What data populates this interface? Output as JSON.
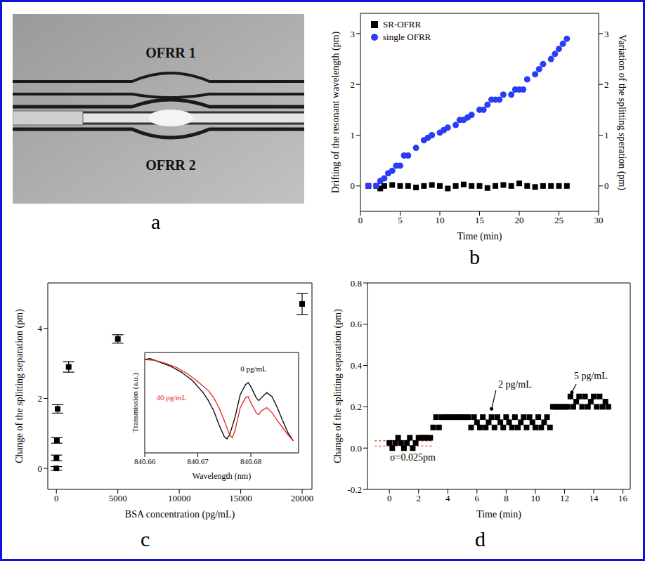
{
  "chart_data": [
    {
      "type": "image",
      "panel_label": "a",
      "labels": [
        "OFRR 1",
        "OFRR 2"
      ]
    },
    {
      "type": "scatter",
      "panel_label": "b",
      "x_label": "Time (min)",
      "y_label": "Drifting of the resonant wavelength (pm)",
      "y2_label": "Variation of the splitting speration (pm)",
      "xlim": [
        0,
        30
      ],
      "xticks": [
        0,
        5,
        10,
        15,
        20,
        25,
        30
      ],
      "ylim": [
        -0.5,
        3.4
      ],
      "yticks": [
        0,
        1,
        2,
        3
      ],
      "y2lim": [
        -0.5,
        3.4
      ],
      "y2ticks": [
        0,
        1,
        2,
        3
      ],
      "legend": "upper left",
      "series": [
        {
          "name": "SR-OFRR",
          "color": "#000000",
          "marker": "square",
          "axis": "y2",
          "x": [
            1,
            2,
            2.5,
            3,
            4,
            5,
            6,
            7,
            8,
            9,
            10,
            11,
            12,
            13,
            14,
            15,
            16,
            17,
            18,
            19,
            20,
            21,
            22,
            23,
            24,
            25,
            26
          ],
          "values": [
            0,
            0,
            -0.05,
            0,
            0.02,
            0,
            0,
            -0.03,
            0,
            0.02,
            0,
            -0.05,
            0,
            0.03,
            0,
            0,
            -0.04,
            0,
            0.02,
            0,
            0.05,
            0,
            -0.02,
            0,
            0,
            0,
            0
          ]
        },
        {
          "name": "single OFRR",
          "color": "#2b3cf5",
          "marker": "circle",
          "x": [
            1,
            2,
            2.5,
            3,
            3.5,
            4,
            4.5,
            5,
            5.5,
            6,
            7,
            8,
            8.5,
            9,
            10,
            10.5,
            11,
            12,
            12.5,
            13,
            13.5,
            14,
            15,
            15.5,
            16,
            16.5,
            17,
            17.5,
            18,
            19,
            19.5,
            20,
            20.5,
            21,
            22,
            22.5,
            23,
            24,
            24.5,
            25,
            25.5,
            26
          ],
          "values": [
            0,
            0,
            0.1,
            0.15,
            0.25,
            0.3,
            0.4,
            0.4,
            0.6,
            0.6,
            0.75,
            0.9,
            0.95,
            1.0,
            1.05,
            1.1,
            1.15,
            1.2,
            1.3,
            1.3,
            1.35,
            1.4,
            1.5,
            1.5,
            1.6,
            1.7,
            1.7,
            1.7,
            1.8,
            1.8,
            1.9,
            1.9,
            1.9,
            2.1,
            2.2,
            2.3,
            2.4,
            2.5,
            2.6,
            2.7,
            2.8,
            2.9
          ]
        }
      ]
    },
    {
      "type": "scatter",
      "panel_label": "c",
      "x_label": "BSA concentration (pg/mL)",
      "y_label": "Change of the splitting separation (pm)",
      "xlim": [
        -700,
        20800
      ],
      "xticks": [
        0,
        5000,
        10000,
        15000,
        20000
      ],
      "ylim": [
        -0.6,
        5.3
      ],
      "yticks": [
        0,
        2,
        4
      ],
      "color": "#000000",
      "marker": "square",
      "x": [
        0,
        5,
        40,
        100,
        1000,
        5000,
        20000
      ],
      "values": [
        0,
        0.3,
        0.8,
        1.7,
        2.9,
        3.7,
        4.7
      ],
      "errors": [
        0.05,
        0.08,
        0.08,
        0.12,
        0.15,
        0.12,
        0.3
      ],
      "inset": {
        "type": "line",
        "x_label": "Wavelength (nm)",
        "y_label": "Transmission (a.u.)",
        "xlim": [
          840.66,
          840.689
        ],
        "xticks": [
          840.66,
          840.67,
          840.68
        ],
        "ylim": [
          0,
          1
        ],
        "tick_labels": "x",
        "series": [
          {
            "name": "0 pg/mL",
            "color": "#000000",
            "x": [
              840.66,
              840.661,
              840.662,
              840.663,
              840.664,
              840.665,
              840.666,
              840.667,
              840.668,
              840.669,
              840.67,
              840.671,
              840.672,
              840.673,
              840.674,
              840.675,
              840.6755,
              840.676,
              840.677,
              840.678,
              840.679,
              840.6795,
              840.68,
              840.681,
              840.6815,
              840.682,
              840.683,
              840.684,
              840.685,
              840.686,
              840.687,
              840.688
            ],
            "values": [
              0.93,
              0.94,
              0.92,
              0.9,
              0.88,
              0.86,
              0.83,
              0.8,
              0.76,
              0.72,
              0.66,
              0.6,
              0.52,
              0.42,
              0.28,
              0.16,
              0.14,
              0.18,
              0.35,
              0.58,
              0.68,
              0.7,
              0.66,
              0.55,
              0.52,
              0.55,
              0.6,
              0.56,
              0.45,
              0.32,
              0.2,
              0.12
            ]
          },
          {
            "name": "40 pg/mL",
            "color": "#e8231f",
            "x": [
              840.66,
              840.662,
              840.664,
              840.666,
              840.668,
              840.67,
              840.672,
              840.673,
              840.674,
              840.675,
              840.676,
              840.6765,
              840.677,
              840.678,
              840.679,
              840.6795,
              840.68,
              840.681,
              840.6815,
              840.682,
              840.683,
              840.684,
              840.685,
              840.686,
              840.687,
              840.688
            ],
            "values": [
              0.93,
              0.92,
              0.89,
              0.85,
              0.79,
              0.71,
              0.62,
              0.55,
              0.45,
              0.32,
              0.18,
              0.15,
              0.22,
              0.45,
              0.55,
              0.56,
              0.5,
              0.4,
              0.38,
              0.42,
              0.45,
              0.4,
              0.32,
              0.25,
              0.18,
              0.12
            ]
          }
        ]
      }
    },
    {
      "type": "scatter",
      "panel_label": "d",
      "x_label": "Time (min)",
      "y_label": "Change of the splitting separation (pm)",
      "xlim": [
        -1.5,
        16.5
      ],
      "xticks": [
        0,
        2,
        4,
        6,
        8,
        10,
        12,
        14,
        16
      ],
      "ylim": [
        -0.2,
        0.8
      ],
      "yticks": [
        -0.2,
        {
          "value": 0,
          "label": "0.0"
        },
        0.2,
        0.4,
        0.6,
        0.8
      ],
      "color": "#000000",
      "marker": "square",
      "x": [
        0,
        0.2,
        0.4,
        0.6,
        0.8,
        1,
        1.2,
        1.4,
        1.6,
        1.8,
        2,
        2.2,
        2.4,
        2.6,
        2.8,
        3,
        3.2,
        3.4,
        3.6,
        3.8,
        4,
        4.2,
        4.4,
        4.6,
        4.8,
        5,
        5.2,
        5.4,
        5.6,
        5.8,
        6,
        6.2,
        6.4,
        6.6,
        6.8,
        7,
        7.2,
        7.4,
        7.6,
        7.8,
        8,
        8.2,
        8.4,
        8.6,
        8.8,
        9,
        9.2,
        9.4,
        9.6,
        9.8,
        10,
        10.2,
        10.4,
        10.6,
        10.8,
        11,
        11.2,
        11.4,
        11.6,
        11.8,
        12,
        12.2,
        12.4,
        12.6,
        12.8,
        13,
        13.2,
        13.4,
        13.6,
        13.8,
        14,
        14.2,
        14.4,
        14.6,
        14.8,
        15
      ],
      "values": [
        0.025,
        0,
        0.025,
        0.05,
        0.025,
        0,
        0.025,
        0.05,
        0,
        0.025,
        0.05,
        0.05,
        0.05,
        0.05,
        0.05,
        0.1,
        0.15,
        0.1,
        0.15,
        0.15,
        0.15,
        0.15,
        0.15,
        0.15,
        0.15,
        0.15,
        0.15,
        0.15,
        0.1,
        0.15,
        0.125,
        0.1,
        0.15,
        0.1,
        0.125,
        0.15,
        0.1,
        0.15,
        0.125,
        0.1,
        0.15,
        0.125,
        0.1,
        0.15,
        0.1,
        0.125,
        0.15,
        0.1,
        0.15,
        0.125,
        0.1,
        0.15,
        0.1,
        0.125,
        0.15,
        0.1,
        0.2,
        0.2,
        0.2,
        0.2,
        0.2,
        0.2,
        0.25,
        0.2,
        0.225,
        0.25,
        0.2,
        0.25,
        0.2,
        0.225,
        0.25,
        0.2,
        0.25,
        0.2,
        0.225,
        0.2
      ],
      "noise_band": {
        "y": [
          0.01,
          0.035
        ],
        "x_range": [
          -1,
          3
        ],
        "color": "#e8231f"
      },
      "annotations": [
        {
          "text": "2 pg/mL",
          "x": 8.6,
          "y": 0.31,
          "arrow_from": [
            7.3,
            0.28
          ],
          "arrow_to": [
            7.0,
            0.19
          ]
        },
        {
          "text": "5 pg/mL",
          "x": 13.8,
          "y": 0.35,
          "arrow_from": [
            12.8,
            0.31
          ],
          "arrow_to": [
            12.5,
            0.27
          ]
        },
        {
          "text": "σ=0.025pm",
          "x": 1.6,
          "y": -0.045
        }
      ]
    }
  ]
}
